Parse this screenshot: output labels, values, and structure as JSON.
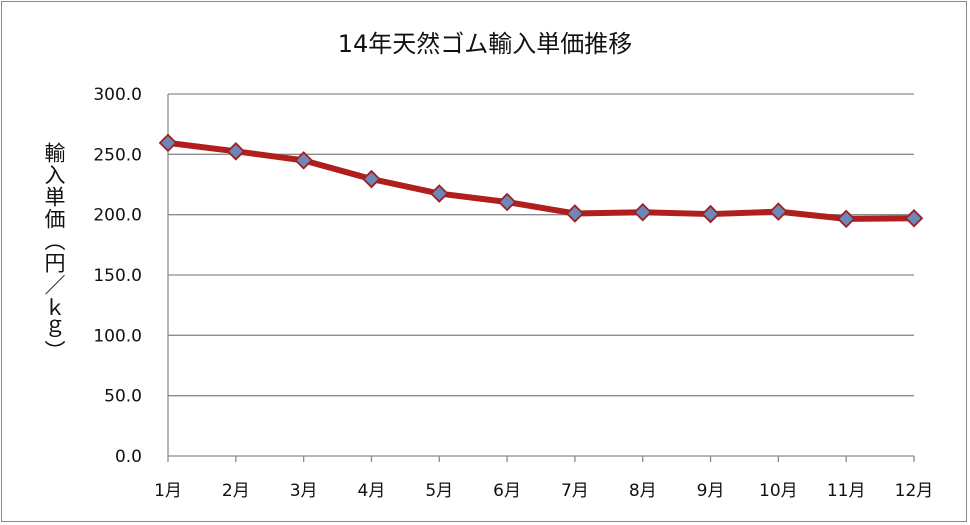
{
  "chart_data": {
    "type": "line",
    "title": "14年天然ゴム輸入単価推移",
    "xlabel": "",
    "ylabel": "輸入単価（円／ｋｇ）",
    "categories": [
      "1月",
      "2月",
      "3月",
      "4月",
      "5月",
      "6月",
      "7月",
      "8月",
      "9月",
      "10月",
      "11月",
      "12月"
    ],
    "series": [
      {
        "values": [
          259.5,
          252.5,
          245.0,
          229.5,
          217.5,
          210.5,
          201.0,
          202.0,
          200.5,
          202.5,
          196.5,
          197.0
        ]
      }
    ],
    "ylim": [
      0,
      300
    ],
    "yticks": [
      "0.0",
      "50.0",
      "100.0",
      "150.0",
      "200.0",
      "250.0",
      "300.0"
    ],
    "grid": true,
    "line_color": "#b01e1e",
    "marker_fill": "#6f87b8",
    "marker_stroke": "#9a2222"
  }
}
